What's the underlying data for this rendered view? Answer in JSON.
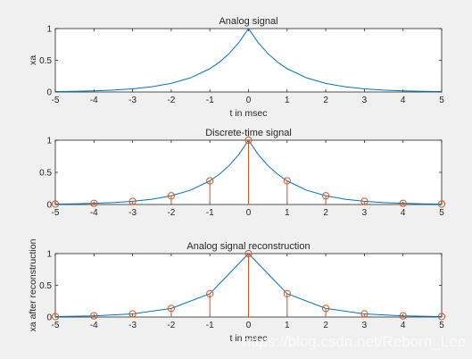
{
  "chart_data": [
    {
      "type": "line",
      "title": "Analog signal",
      "xlabel": "t in msec",
      "ylabel": "xa",
      "xlim": [
        -5,
        5
      ],
      "ylim": [
        0,
        1
      ],
      "xticks": [
        "-5",
        "-4",
        "-3",
        "-2",
        "-1",
        "0",
        "1",
        "2",
        "3",
        "4",
        "5"
      ],
      "yticks": [
        "0",
        "0.5",
        "1"
      ],
      "grid": false,
      "series": [
        {
          "color": "#0072bd",
          "x": [
            -5,
            -4.5,
            -4,
            -3.5,
            -3,
            -2.5,
            -2,
            -1.5,
            -1,
            -0.75,
            -0.5,
            -0.25,
            0,
            0.25,
            0.5,
            0.75,
            1,
            1.5,
            2,
            2.5,
            3,
            3.5,
            4,
            4.5,
            5
          ],
          "y": [
            0.0067,
            0.0111,
            0.0183,
            0.0302,
            0.0498,
            0.0821,
            0.1353,
            0.2231,
            0.3679,
            0.4724,
            0.6065,
            0.7788,
            1,
            0.7788,
            0.6065,
            0.4724,
            0.3679,
            0.2231,
            0.1353,
            0.0821,
            0.0498,
            0.0302,
            0.0183,
            0.0111,
            0.0067
          ]
        }
      ]
    },
    {
      "type": "stem",
      "title": "Discrete-time signal",
      "xlabel": "",
      "ylabel": "",
      "xlim": [
        -5,
        5
      ],
      "ylim": [
        0,
        1
      ],
      "xticks": [
        "-5",
        "-4",
        "-3",
        "-2",
        "-1",
        "0",
        "1",
        "2",
        "3",
        "4",
        "5"
      ],
      "yticks": [
        "0",
        "0.5",
        "1"
      ],
      "grid": false,
      "series": [
        {
          "color": "#0072bd",
          "kind": "line",
          "x": [
            -5,
            -4.5,
            -4,
            -3.5,
            -3,
            -2.5,
            -2,
            -1.5,
            -1,
            -0.75,
            -0.5,
            -0.25,
            0,
            0.25,
            0.5,
            0.75,
            1,
            1.5,
            2,
            2.5,
            3,
            3.5,
            4,
            4.5,
            5
          ],
          "y": [
            0.0067,
            0.0111,
            0.0183,
            0.0302,
            0.0498,
            0.0821,
            0.1353,
            0.2231,
            0.3679,
            0.4724,
            0.6065,
            0.7788,
            1,
            0.7788,
            0.6065,
            0.4724,
            0.3679,
            0.2231,
            0.1353,
            0.0821,
            0.0498,
            0.0302,
            0.0183,
            0.0111,
            0.0067
          ]
        },
        {
          "color": "#d95319",
          "kind": "stem",
          "x": [
            -5,
            -4,
            -3,
            -2,
            -1,
            0,
            1,
            2,
            3,
            4,
            5
          ],
          "y": [
            0.0067,
            0.0183,
            0.0498,
            0.1353,
            0.3679,
            1,
            0.3679,
            0.1353,
            0.0498,
            0.0183,
            0.0067
          ]
        }
      ]
    },
    {
      "type": "stem",
      "title": "Analog signal reconstruction",
      "xlabel": "t in msec",
      "ylabel": "xa after reconstruction",
      "xlim": [
        -5,
        5
      ],
      "ylim": [
        0,
        1
      ],
      "xticks": [
        "-5",
        "-4",
        "-3",
        "-2",
        "-1",
        "0",
        "1",
        "2",
        "3",
        "4",
        "5"
      ],
      "yticks": [
        "0",
        "0.5",
        "1"
      ],
      "grid": false,
      "series": [
        {
          "color": "#0072bd",
          "kind": "line",
          "x": [
            -5,
            -4,
            -3,
            -2,
            -1,
            0,
            1,
            2,
            3,
            4,
            5
          ],
          "y": [
            0.0067,
            0.0183,
            0.0498,
            0.1353,
            0.3679,
            1,
            0.3679,
            0.1353,
            0.0498,
            0.0183,
            0.0067
          ]
        },
        {
          "color": "#d95319",
          "kind": "stem",
          "x": [
            -5,
            -4,
            -3,
            -2,
            -1,
            0,
            1,
            2,
            3,
            4,
            5
          ],
          "y": [
            0.0067,
            0.0183,
            0.0498,
            0.1353,
            0.3679,
            1,
            0.3679,
            0.1353,
            0.0498,
            0.0183,
            0.0067
          ]
        }
      ]
    }
  ],
  "watermark": "https://blog.csdn.net/Reborn_Lee"
}
